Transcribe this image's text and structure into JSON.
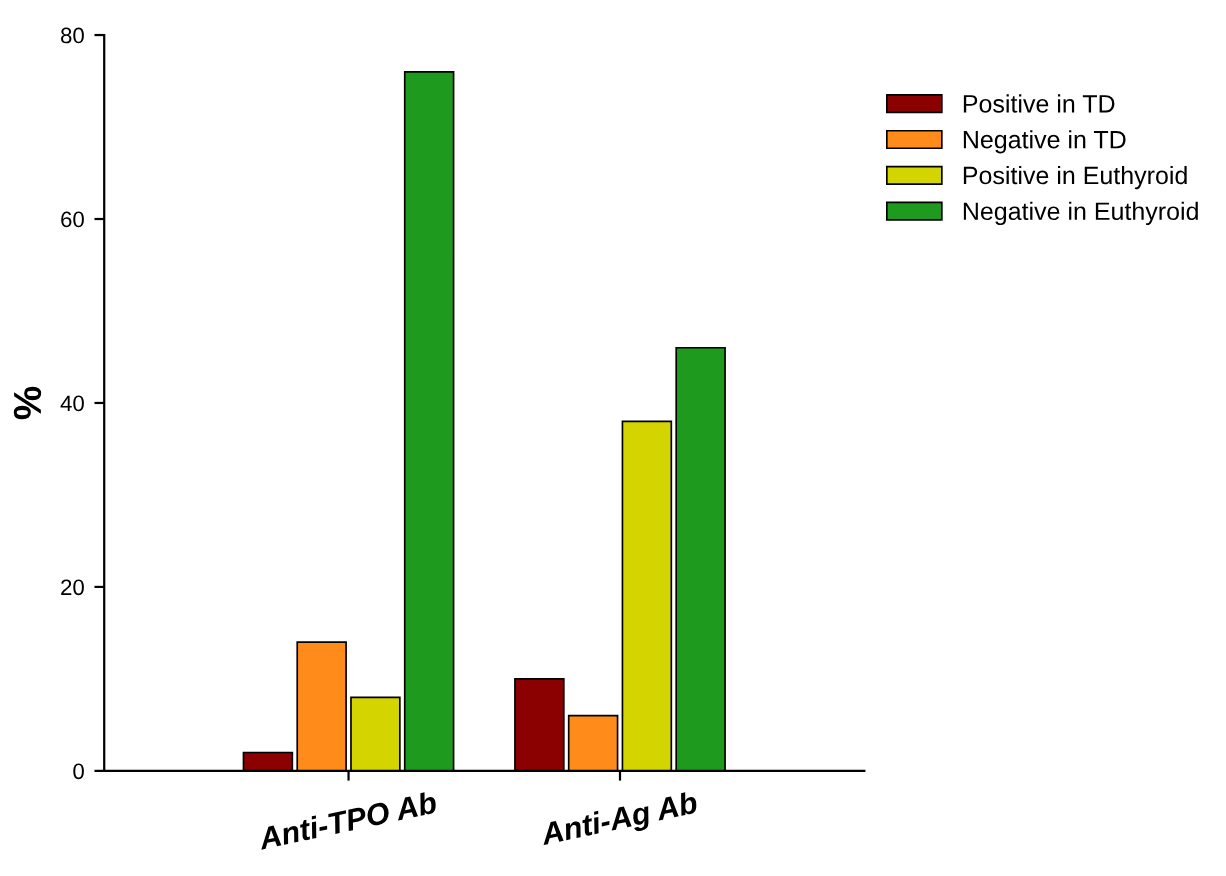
{
  "chart_data": {
    "type": "bar",
    "ylabel": "%",
    "categories": [
      "Anti-TPO Ab",
      "Anti-Ag Ab"
    ],
    "series": [
      {
        "name": "Positive in TD",
        "color": "#8b0000",
        "values": [
          2,
          10
        ]
      },
      {
        "name": "Negative in TD",
        "color": "#ff8c1a",
        "values": [
          14,
          6
        ]
      },
      {
        "name": "Positive in Euthyroid",
        "color": "#d4d400",
        "values": [
          8,
          38
        ]
      },
      {
        "name": "Negative in Euthyroid",
        "color": "#1e9a1e",
        "values": [
          76,
          46
        ]
      }
    ],
    "ylim": [
      0,
      80
    ],
    "yticks": [
      0,
      20,
      40,
      60,
      80
    ],
    "legend": "top right",
    "grid": false
  }
}
